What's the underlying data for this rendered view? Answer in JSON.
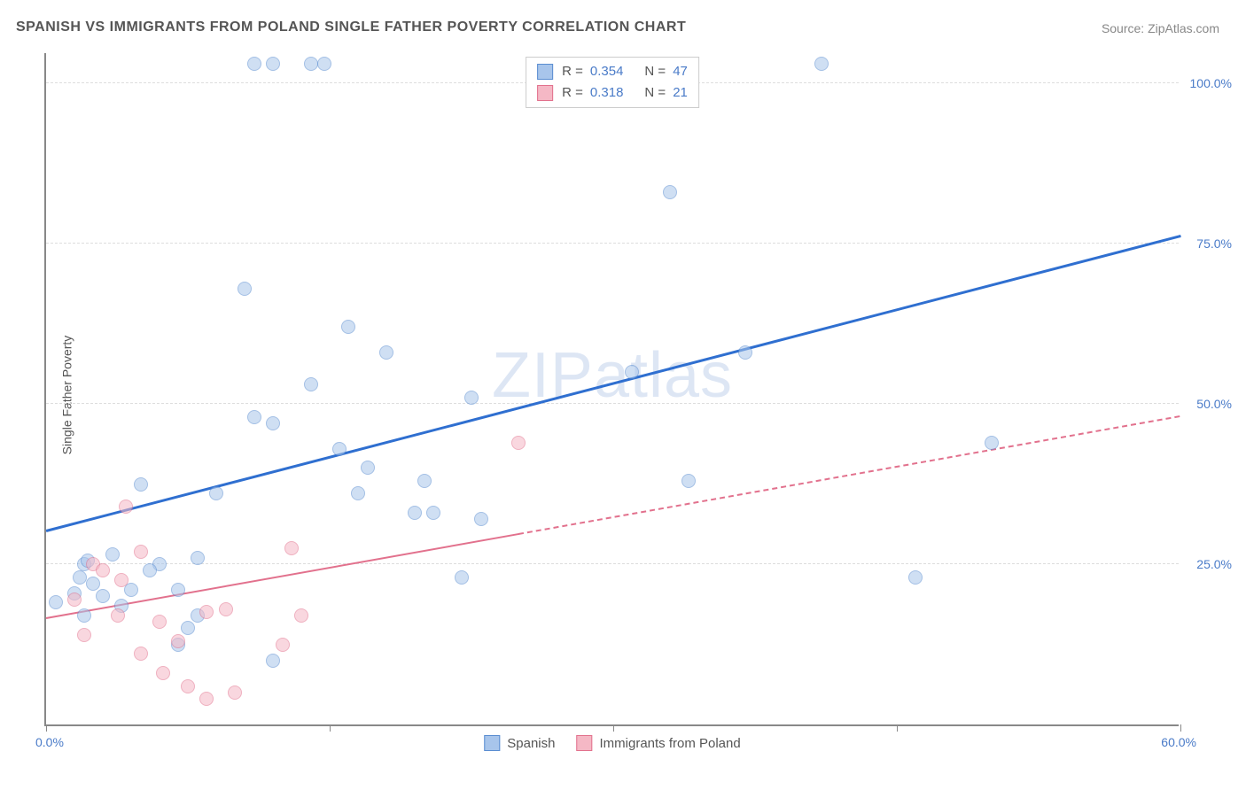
{
  "title": "SPANISH VS IMMIGRANTS FROM POLAND SINGLE FATHER POVERTY CORRELATION CHART",
  "source": "Source: ZipAtlas.com",
  "ylabel": "Single Father Poverty",
  "watermark": "ZIPatlas",
  "chart": {
    "type": "scatter",
    "xlim": [
      0,
      60
    ],
    "ylim": [
      0,
      105
    ],
    "x_ticks": [
      0,
      30,
      60
    ],
    "x_tick_labels": [
      "0.0%",
      "",
      "60.0%"
    ],
    "x_tick_marks": [
      0,
      15,
      30,
      45,
      60
    ],
    "y_gridlines": [
      25,
      50,
      75,
      100
    ],
    "y_tick_labels": [
      "25.0%",
      "50.0%",
      "75.0%",
      "100.0%"
    ],
    "background_color": "#ffffff",
    "grid_color": "#dddddd",
    "axis_color": "#888888",
    "tick_label_color": "#4a7bc8",
    "marker_radius": 8,
    "series": [
      {
        "name": "Spanish",
        "fill": "#a8c5eb",
        "stroke": "#5a8dd1",
        "fill_opacity": 0.55,
        "r": "0.354",
        "n": "47",
        "trend": {
          "x1": 0,
          "y1": 30,
          "x2": 60,
          "y2": 76,
          "color": "#2f6fd0",
          "width": 2.5,
          "dash_from": null
        },
        "points": [
          [
            11,
            103
          ],
          [
            12,
            103
          ],
          [
            14,
            103
          ],
          [
            14.7,
            103
          ],
          [
            41,
            103
          ],
          [
            33,
            83
          ],
          [
            10.5,
            68
          ],
          [
            16,
            62
          ],
          [
            18,
            58
          ],
          [
            37,
            58
          ],
          [
            31,
            55
          ],
          [
            14,
            53
          ],
          [
            22.5,
            51
          ],
          [
            11,
            48
          ],
          [
            12,
            47
          ],
          [
            50,
            44
          ],
          [
            15.5,
            43
          ],
          [
            17,
            40
          ],
          [
            20,
            38
          ],
          [
            5,
            37.5
          ],
          [
            9,
            36
          ],
          [
            16.5,
            36
          ],
          [
            19.5,
            33
          ],
          [
            20.5,
            33
          ],
          [
            23,
            32
          ],
          [
            34,
            38
          ],
          [
            2,
            25
          ],
          [
            3.5,
            26.5
          ],
          [
            6,
            25
          ],
          [
            8,
            26
          ],
          [
            7,
            21
          ],
          [
            3,
            20
          ],
          [
            2.5,
            22
          ],
          [
            1.5,
            20.5
          ],
          [
            22,
            23
          ],
          [
            46,
            23
          ],
          [
            2,
            17
          ],
          [
            4,
            18.5
          ],
          [
            8,
            17
          ],
          [
            7,
            12.5
          ],
          [
            12,
            10
          ],
          [
            7.5,
            15
          ],
          [
            0.5,
            19
          ],
          [
            2.2,
            25.5
          ],
          [
            4.5,
            21
          ],
          [
            1.8,
            23
          ],
          [
            5.5,
            24
          ]
        ]
      },
      {
        "name": "Immigrants from Poland",
        "fill": "#f5b8c5",
        "stroke": "#e2718d",
        "fill_opacity": 0.55,
        "r": "0.318",
        "n": "21",
        "trend": {
          "x1": 0,
          "y1": 16.5,
          "x2": 60,
          "y2": 48,
          "color": "#e2718d",
          "width": 2,
          "dash_from": 25
        },
        "points": [
          [
            25,
            44
          ],
          [
            4.2,
            34
          ],
          [
            2.5,
            25
          ],
          [
            5,
            27
          ],
          [
            13,
            27.5
          ],
          [
            1.5,
            19.5
          ],
          [
            3,
            24
          ],
          [
            4,
            22.5
          ],
          [
            6,
            16
          ],
          [
            8.5,
            17.5
          ],
          [
            9.5,
            18
          ],
          [
            13.5,
            17
          ],
          [
            2,
            14
          ],
          [
            5,
            11
          ],
          [
            7,
            13
          ],
          [
            12.5,
            12.5
          ],
          [
            7.5,
            6
          ],
          [
            8.5,
            4
          ],
          [
            10,
            5
          ],
          [
            6.2,
            8
          ],
          [
            3.8,
            17
          ]
        ]
      }
    ]
  },
  "legend_top": {
    "rows": [
      {
        "swatch_fill": "#a8c5eb",
        "swatch_stroke": "#5a8dd1",
        "r": "0.354",
        "n": "47"
      },
      {
        "swatch_fill": "#f5b8c5",
        "swatch_stroke": "#e2718d",
        "r": "0.318",
        "n": "21"
      }
    ]
  },
  "legend_bottom": {
    "items": [
      {
        "label": "Spanish",
        "swatch_fill": "#a8c5eb",
        "swatch_stroke": "#5a8dd1"
      },
      {
        "label": "Immigrants from Poland",
        "swatch_fill": "#f5b8c5",
        "swatch_stroke": "#e2718d"
      }
    ]
  }
}
